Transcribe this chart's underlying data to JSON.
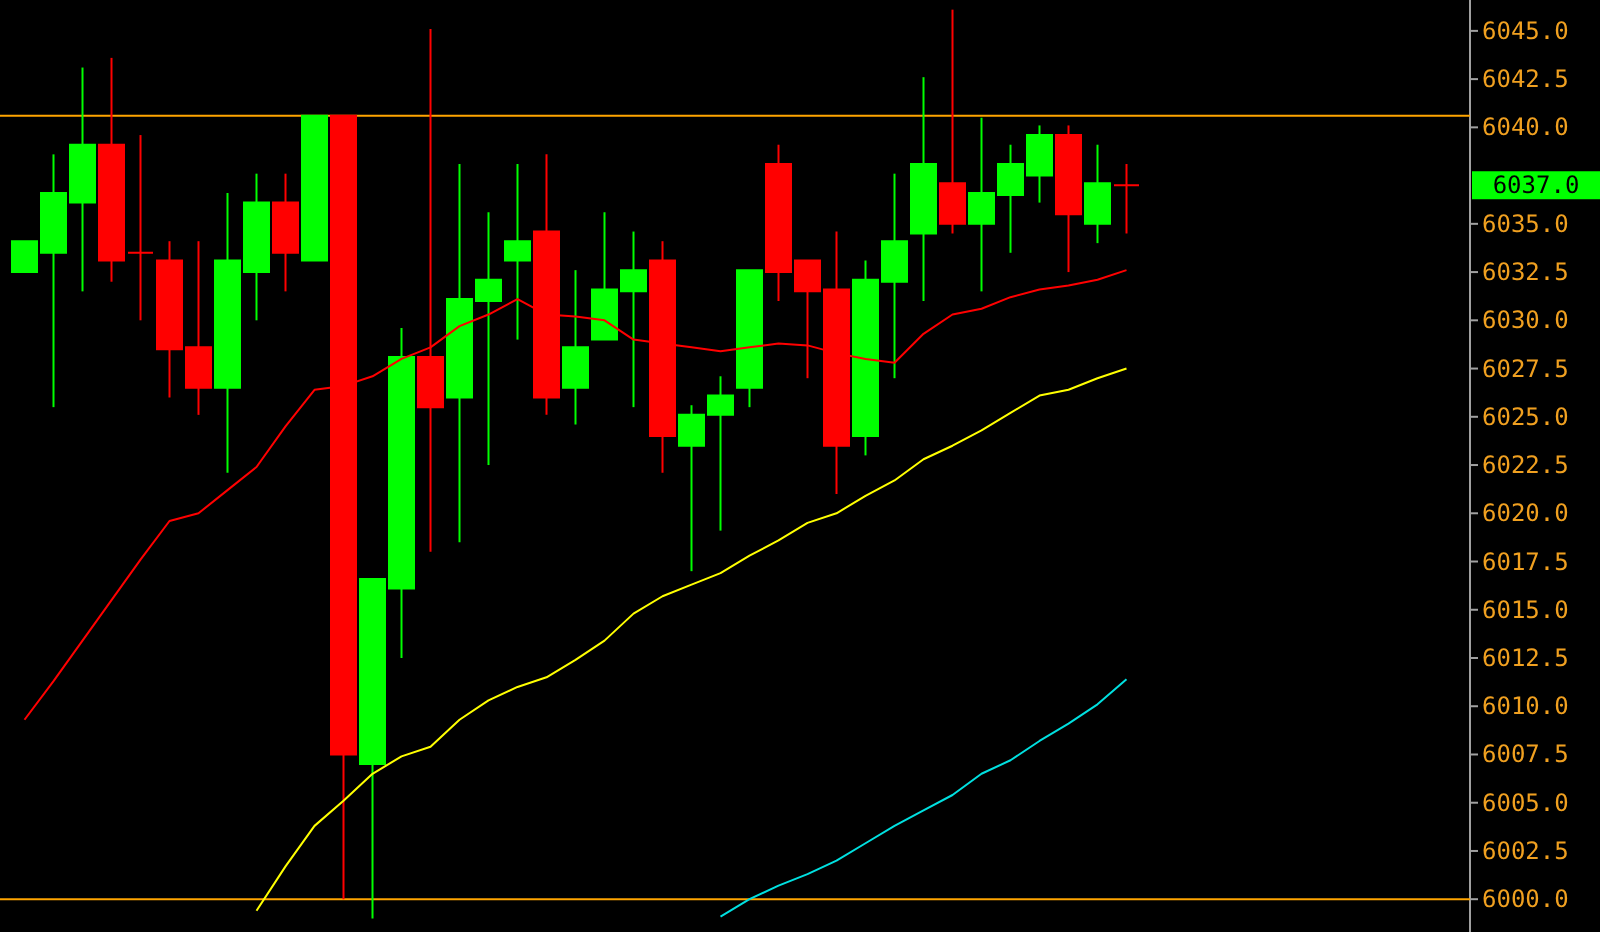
{
  "chart_data": {
    "type": "candlestick",
    "categories": [
      null,
      null,
      null,
      null,
      null,
      null,
      null,
      null,
      null,
      null,
      null,
      null,
      null,
      null,
      null,
      null,
      null,
      null,
      null,
      null,
      null,
      null,
      null,
      null,
      null,
      null,
      null,
      null,
      null,
      null,
      null,
      null,
      null,
      null,
      null,
      null,
      null,
      null,
      null
    ],
    "ohlc": [
      [
        6032.5,
        6034.1,
        6032.5,
        6034.1
      ],
      [
        6033.5,
        6038.6,
        6025.5,
        6036.6
      ],
      [
        6036.1,
        6043.1,
        6031.5,
        6039.1
      ],
      [
        6039.1,
        6043.6,
        6032.0,
        6033.1
      ],
      [
        6033.5,
        6039.6,
        6030.0,
        6033.5
      ],
      [
        6033.1,
        6034.1,
        6026.0,
        6028.5
      ],
      [
        6028.6,
        6034.1,
        6025.1,
        6026.5
      ],
      [
        6026.5,
        6036.6,
        6022.1,
        6033.1
      ],
      [
        6032.5,
        6037.6,
        6030.0,
        6036.1
      ],
      [
        6036.1,
        6037.6,
        6031.5,
        6033.5
      ],
      [
        6033.1,
        6040.6,
        6033.1,
        6040.6
      ],
      [
        6040.6,
        6040.6,
        6000.0,
        6007.5
      ],
      [
        6007.0,
        6016.6,
        5999.0,
        6016.6
      ],
      [
        6016.1,
        6029.6,
        6012.5,
        6028.1
      ],
      [
        6028.1,
        6045.1,
        6018.0,
        6025.5
      ],
      [
        6026.0,
        6038.1,
        6018.5,
        6031.1
      ],
      [
        6031.0,
        6035.6,
        6022.5,
        6032.1
      ],
      [
        6033.1,
        6038.1,
        6029.0,
        6034.1
      ],
      [
        6034.6,
        6038.6,
        6025.1,
        6026.0
      ],
      [
        6026.5,
        6032.6,
        6024.6,
        6028.6
      ],
      [
        6029.0,
        6035.6,
        6029.0,
        6031.6
      ],
      [
        6031.5,
        6034.6,
        6025.5,
        6032.6
      ],
      [
        6033.1,
        6034.1,
        6022.1,
        6024.0
      ],
      [
        6023.5,
        6025.6,
        6017.0,
        6025.1
      ],
      [
        6025.1,
        6027.1,
        6019.1,
        6026.1
      ],
      [
        6026.5,
        6032.6,
        6025.5,
        6032.6
      ],
      [
        6038.1,
        6039.1,
        6031.0,
        6032.5
      ],
      [
        6033.1,
        6033.1,
        6027.0,
        6031.5
      ],
      [
        6031.6,
        6034.6,
        6021.0,
        6023.5
      ],
      [
        6024.0,
        6033.1,
        6023.0,
        6032.1
      ],
      [
        6032.0,
        6037.6,
        6027.0,
        6034.1
      ],
      [
        6034.5,
        6042.6,
        6031.0,
        6038.1
      ],
      [
        6037.1,
        6046.1,
        6034.5,
        6035.0
      ],
      [
        6035.0,
        6040.5,
        6031.5,
        6036.6
      ],
      [
        6036.5,
        6039.1,
        6033.5,
        6038.1
      ],
      [
        6037.5,
        6040.1,
        6036.1,
        6039.6
      ],
      [
        6039.6,
        6040.1,
        6032.5,
        6035.5
      ],
      [
        6035.0,
        6039.1,
        6034.0,
        6037.1
      ],
      [
        6037.0,
        6038.1,
        6034.5,
        6037.0
      ]
    ],
    "colors": [
      "#00ff00",
      "#00ff00",
      "#00ff00",
      "#ff0000",
      "#ff0000",
      "#ff0000",
      "#ff0000",
      "#00ff00",
      "#00ff00",
      "#ff0000",
      "#00ff00",
      "#ff0000",
      "#00ff00",
      "#00ff00",
      "#ff0000",
      "#00ff00",
      "#00ff00",
      "#00ff00",
      "#ff0000",
      "#00ff00",
      "#00ff00",
      "#00ff00",
      "#ff0000",
      "#00ff00",
      "#00ff00",
      "#00ff00",
      "#ff0000",
      "#ff0000",
      "#ff0000",
      "#00ff00",
      "#00ff00",
      "#00ff00",
      "#ff0000",
      "#00ff00",
      "#00ff00",
      "#00ff00",
      "#ff0000",
      "#00ff00",
      "#ff0000"
    ],
    "series": [
      {
        "type": "line",
        "color": "#ff0000",
        "values": [
          6009.3,
          6011.3,
          6013.4,
          6015.5,
          6017.6,
          6019.6,
          6020.0,
          6021.2,
          6022.4,
          6024.5,
          6026.4,
          6026.6,
          6027.1,
          6028.0,
          6028.6,
          6029.7,
          6030.3,
          6031.1,
          6030.3,
          6030.2,
          6030.0,
          6029.0,
          6028.8,
          6028.6,
          6028.4,
          6028.6,
          6028.8,
          6028.7,
          6028.3,
          6028.0,
          6027.8,
          6029.3,
          6030.3,
          6030.6,
          6031.2,
          6031.6,
          6031.8,
          6032.1,
          6032.6
        ]
      },
      {
        "type": "line",
        "color": "#ffff00",
        "values": [
          null,
          null,
          null,
          null,
          null,
          null,
          null,
          null,
          5999.4,
          6001.7,
          6003.8,
          6005.1,
          6006.5,
          6007.4,
          6007.9,
          6009.3,
          6010.3,
          6011.0,
          6011.5,
          6012.4,
          6013.4,
          6014.8,
          6015.7,
          6016.3,
          6016.9,
          6017.8,
          6018.6,
          6019.5,
          6020.0,
          6020.9,
          6021.7,
          6022.8,
          6023.5,
          6024.3,
          6025.2,
          6026.1,
          6026.4,
          6027.0,
          6027.5
        ]
      },
      {
        "type": "line",
        "color": "#00e0e0",
        "values": [
          null,
          null,
          null,
          null,
          null,
          null,
          null,
          null,
          null,
          null,
          null,
          null,
          null,
          null,
          null,
          null,
          null,
          null,
          null,
          null,
          null,
          null,
          null,
          null,
          5999.1,
          6000.0,
          6000.7,
          6001.3,
          6002.0,
          6002.9,
          6003.8,
          6004.6,
          6005.4,
          6006.5,
          6007.2,
          6008.2,
          6009.1,
          6010.1,
          6011.4
        ]
      }
    ],
    "ylim": [
      5998.3,
      6046.6
    ],
    "yticks": [
      {
        "value": 6000,
        "label": "6000.0"
      },
      {
        "value": 6002.5,
        "label": "6002.5"
      },
      {
        "value": 6005,
        "label": "6005.0"
      },
      {
        "value": 6007.5,
        "label": "6007.5"
      },
      {
        "value": 6010,
        "label": "6010.0"
      },
      {
        "value": 6012.5,
        "label": "6012.5"
      },
      {
        "value": 6015,
        "label": "6015.0"
      },
      {
        "value": 6017.5,
        "label": "6017.5"
      },
      {
        "value": 6020,
        "label": "6020.0"
      },
      {
        "value": 6022.5,
        "label": "6022.5"
      },
      {
        "value": 6025,
        "label": "6025.0"
      },
      {
        "value": 6027.5,
        "label": "6027.5"
      },
      {
        "value": 6030,
        "label": "6030.0"
      },
      {
        "value": 6032.5,
        "label": "6032.5"
      },
      {
        "value": 6035,
        "label": "6035.0"
      },
      {
        "value": 6040,
        "label": "6040.0"
      },
      {
        "value": 6042.5,
        "label": "6042.5"
      },
      {
        "value": 6045,
        "label": "6045.0"
      }
    ],
    "ref_lines": [
      {
        "axis": "y",
        "value": 6040.6,
        "color": "#ffa500"
      },
      {
        "axis": "y",
        "value": 6000.0,
        "color": "#ffa500"
      }
    ],
    "annotations": [
      "6037.0"
    ],
    "tick_labels": "y"
  }
}
